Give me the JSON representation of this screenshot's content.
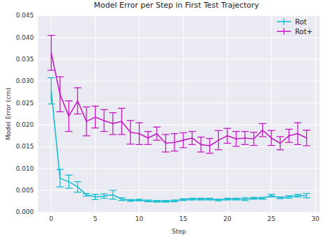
{
  "chart_data": {
    "type": "line",
    "title": "Model Error per Step in First Test Trajectory",
    "x_label": "Step",
    "y_label": "Model Error (cm)",
    "x": [
      0,
      1,
      2,
      3,
      4,
      5,
      6,
      7,
      8,
      9,
      10,
      11,
      12,
      13,
      14,
      15,
      16,
      17,
      18,
      19,
      20,
      21,
      22,
      23,
      24,
      25,
      26,
      27,
      28,
      29
    ],
    "series": [
      {
        "name": "Rot",
        "color": "#17becf",
        "values": [
          0.0278,
          0.0078,
          0.007,
          0.0058,
          0.004,
          0.0035,
          0.0037,
          0.004,
          0.003,
          0.0027,
          0.0028,
          0.0026,
          0.0025,
          0.0025,
          0.0026,
          0.0029,
          0.003,
          0.003,
          0.003,
          0.0028,
          0.003,
          0.003,
          0.003,
          0.0032,
          0.0032,
          0.0038,
          0.0033,
          0.0035,
          0.0038,
          0.0038
        ],
        "errors": [
          0.003,
          0.002,
          0.0015,
          0.0012,
          0.0003,
          0.0006,
          0.0005,
          0.001,
          0.0003,
          0.0002,
          0.0002,
          0.0002,
          0.0002,
          0.0002,
          0.0002,
          0.0002,
          0.0002,
          0.0002,
          0.0002,
          0.0002,
          0.0002,
          0.0002,
          0.0003,
          0.0002,
          0.0002,
          0.0003,
          0.0002,
          0.0003,
          0.0003,
          0.0005
        ]
      },
      {
        "name": "Rot+",
        "color": "#c51bc5",
        "values": [
          0.0365,
          0.027,
          0.022,
          0.0255,
          0.0208,
          0.0218,
          0.021,
          0.0203,
          0.0208,
          0.0183,
          0.018,
          0.017,
          0.018,
          0.0158,
          0.016,
          0.0165,
          0.017,
          0.0155,
          0.0152,
          0.0165,
          0.0175,
          0.0168,
          0.017,
          0.0168,
          0.0188,
          0.017,
          0.0158,
          0.0175,
          0.018,
          0.017
        ],
        "errors": [
          0.004,
          0.004,
          0.0035,
          0.003,
          0.0033,
          0.0025,
          0.0025,
          0.0025,
          0.003,
          0.0027,
          0.0025,
          0.0015,
          0.0015,
          0.002,
          0.002,
          0.0017,
          0.0015,
          0.0017,
          0.0017,
          0.0022,
          0.0017,
          0.0017,
          0.0015,
          0.0015,
          0.0015,
          0.0017,
          0.0015,
          0.0015,
          0.0025,
          0.0018
        ]
      }
    ],
    "xlim": [
      -1.5,
      30.5
    ],
    "xticks": [
      0,
      5,
      10,
      15,
      20,
      25,
      30
    ],
    "ylim": [
      0,
      0.045
    ],
    "yticks": [
      {
        "value": 0,
        "label": "0.000"
      },
      {
        "value": 0.005,
        "label": "0.005"
      },
      {
        "value": 0.01,
        "label": "0.010"
      },
      {
        "value": 0.015,
        "label": "0.015"
      },
      {
        "value": 0.02,
        "label": "0.020"
      },
      {
        "value": 0.025,
        "label": "0.025"
      },
      {
        "value": 0.03,
        "label": "0.030"
      },
      {
        "value": 0.035,
        "label": "0.035"
      },
      {
        "value": 0.04,
        "label": "0.040"
      },
      {
        "value": 0.045,
        "label": "0.045"
      }
    ],
    "grid": true,
    "legend": "upper right"
  }
}
